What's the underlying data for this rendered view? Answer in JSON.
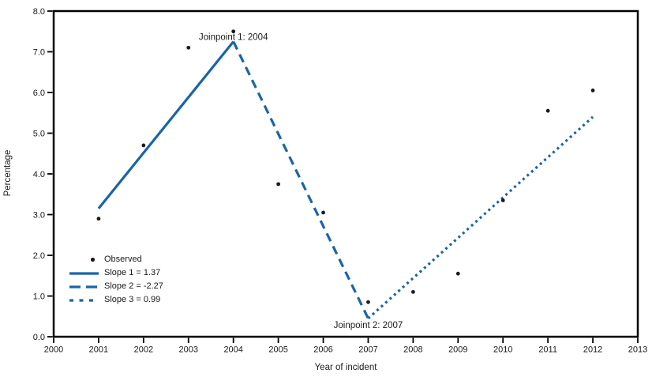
{
  "chart_data": {
    "type": "line",
    "title": "",
    "xlabel": "Year of incident",
    "ylabel": "Percentage",
    "xlim": [
      2000,
      2013
    ],
    "ylim": [
      0.0,
      8.0
    ],
    "grid": false,
    "x_ticks": [
      2000,
      2001,
      2002,
      2003,
      2004,
      2005,
      2006,
      2007,
      2008,
      2009,
      2010,
      2011,
      2012,
      2013
    ],
    "y_ticks": [
      0,
      1,
      2,
      3,
      4,
      5,
      6,
      7,
      8
    ],
    "y_tick_labels": [
      "0.0",
      "1.0",
      "2.0",
      "3.0",
      "4.0",
      "5.0",
      "6.0",
      "7.0",
      "8.0"
    ],
    "observed": {
      "label": "Observed",
      "x": [
        2001,
        2002,
        2003,
        2004,
        2005,
        2006,
        2007,
        2008,
        2009,
        2010,
        2011,
        2012
      ],
      "y": [
        2.9,
        4.7,
        7.1,
        7.5,
        3.75,
        3.05,
        0.85,
        1.1,
        1.55,
        3.35,
        5.55,
        6.05
      ]
    },
    "segments": [
      {
        "name": "Slope 1 = 1.37",
        "slope": 1.37,
        "style": "solid",
        "x": [
          2001,
          2004
        ],
        "y": [
          3.15,
          7.25
        ]
      },
      {
        "name": "Slope 2 = -2.27",
        "slope": -2.27,
        "style": "dashed",
        "x": [
          2004,
          2007
        ],
        "y": [
          7.25,
          0.45
        ]
      },
      {
        "name": "Slope 3 = 0.99",
        "slope": 0.99,
        "style": "dotted",
        "x": [
          2007,
          2012
        ],
        "y": [
          0.45,
          5.4
        ]
      }
    ],
    "annotations": [
      {
        "text": "Joinpoint 1: 2004",
        "x": 2004,
        "y": 7.25,
        "dy": -2
      },
      {
        "text": "Joinpoint 2: 2007",
        "x": 2007,
        "y": 0.45,
        "dy": 12
      }
    ],
    "legend": {
      "position": "lower-left",
      "items": [
        {
          "label": "Observed",
          "swatch": "dot"
        },
        {
          "label": "Slope 1 = 1.37",
          "swatch": "solid"
        },
        {
          "label": "Slope 2 = -2.27",
          "swatch": "dashed"
        },
        {
          "label": "Slope 3 = 0.99",
          "swatch": "dotted"
        }
      ]
    },
    "colors": {
      "accent": "#1a64a8",
      "marker": "#1a1a1a",
      "axis": "#000000"
    }
  }
}
